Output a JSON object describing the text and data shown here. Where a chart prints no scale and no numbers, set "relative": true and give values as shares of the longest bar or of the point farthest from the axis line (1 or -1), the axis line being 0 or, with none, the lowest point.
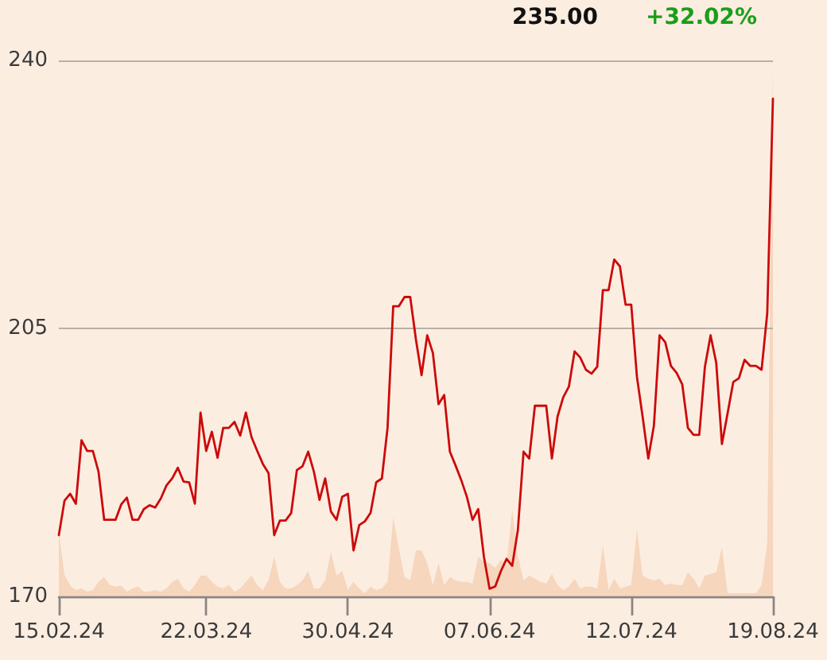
{
  "chart_data": [
    {
      "type": "line",
      "annotations": [
        "235.00",
        "+32.02%"
      ],
      "categories": [
        "15.02.24",
        null,
        null,
        null,
        null,
        null,
        null,
        null,
        null,
        null,
        null,
        null,
        null,
        null,
        null,
        null,
        null,
        null,
        null,
        null,
        null,
        null,
        null,
        null,
        null,
        null,
        "22.03.24",
        null,
        null,
        null,
        null,
        null,
        null,
        null,
        null,
        null,
        null,
        null,
        null,
        null,
        null,
        null,
        null,
        null,
        null,
        null,
        null,
        null,
        null,
        null,
        null,
        "30.04.24",
        null,
        null,
        null,
        null,
        null,
        null,
        null,
        null,
        null,
        null,
        null,
        null,
        null,
        null,
        null,
        null,
        null,
        null,
        null,
        null,
        null,
        null,
        null,
        null,
        "07.06.24",
        null,
        null,
        null,
        null,
        null,
        null,
        null,
        null,
        null,
        null,
        null,
        null,
        null,
        null,
        null,
        null,
        null,
        null,
        null,
        null,
        null,
        null,
        null,
        null,
        "12.07.24",
        null,
        null,
        null,
        null,
        null,
        null,
        null,
        null,
        null,
        null,
        null,
        null,
        null,
        null,
        null,
        null,
        null,
        null,
        null,
        null,
        null,
        null,
        null,
        null,
        "19.08.24"
      ],
      "series": [
        {
          "color": "#cc0a0a",
          "values": [
            178.0,
            182.5,
            183.4,
            182.1,
            190.4,
            189.0,
            189.0,
            186.3,
            180.0,
            180.0,
            180.0,
            182.0,
            182.9,
            180.0,
            180.0,
            181.4,
            181.9,
            181.6,
            182.8,
            184.5,
            185.4,
            186.8,
            185.0,
            184.9,
            182.1,
            194.0,
            189.0,
            191.5,
            188.1,
            192.0,
            192.0,
            192.8,
            191.0,
            194.0,
            190.8,
            189.0,
            187.3,
            186.1,
            178.0,
            179.9,
            179.9,
            180.9,
            186.5,
            187.0,
            188.9,
            186.3,
            182.6,
            185.4,
            181.1,
            180.0,
            183.0,
            183.4,
            176.0,
            179.3,
            179.8,
            180.9,
            184.9,
            185.4,
            192.0,
            207.9,
            207.9,
            209.1,
            209.1,
            203.6,
            198.9,
            204.1,
            201.8,
            195.1,
            196.3,
            188.9,
            187.1,
            185.2,
            183.0,
            180.0,
            181.4,
            175.2,
            171.0,
            171.3,
            173.3,
            174.9,
            174.0,
            178.7,
            188.9,
            188.0,
            194.9,
            194.9,
            194.9,
            188.0,
            193.5,
            196.0,
            197.4,
            202.0,
            201.2,
            199.6,
            199.1,
            200.0,
            210.0,
            210.0,
            214.0,
            213.1,
            208.1,
            208.1,
            198.7,
            193.5,
            188.0,
            192.3,
            204.1,
            203.2,
            200.1,
            199.2,
            197.7,
            192.0,
            191.1,
            191.1,
            200.0,
            204.1,
            200.5,
            189.9,
            193.9,
            198.0,
            198.5,
            200.9,
            200.1,
            200.1,
            199.6,
            207.0,
            235.0
          ]
        }
      ],
      "ylim": [
        170,
        240
      ],
      "yticks": [
        170,
        205,
        240
      ],
      "grid": "y",
      "marker": "none",
      "line_style": "solid"
    },
    {
      "type": "area",
      "relative": true,
      "tick_labels": false,
      "categories": [
        "15.02.24",
        null,
        null,
        null,
        null,
        null,
        null,
        null,
        null,
        null,
        null,
        null,
        null,
        null,
        null,
        null,
        null,
        null,
        null,
        null,
        null,
        null,
        null,
        null,
        null,
        null,
        "22.03.24",
        null,
        null,
        null,
        null,
        null,
        null,
        null,
        null,
        null,
        null,
        null,
        null,
        null,
        null,
        null,
        null,
        null,
        null,
        null,
        null,
        null,
        null,
        null,
        null,
        "30.04.24",
        null,
        null,
        null,
        null,
        null,
        null,
        null,
        null,
        null,
        null,
        null,
        null,
        null,
        null,
        null,
        null,
        null,
        null,
        null,
        null,
        null,
        null,
        null,
        null,
        "07.06.24",
        null,
        null,
        null,
        null,
        null,
        null,
        null,
        null,
        null,
        null,
        null,
        null,
        null,
        null,
        null,
        null,
        null,
        null,
        null,
        null,
        null,
        null,
        null,
        null,
        "12.07.24",
        null,
        null,
        null,
        null,
        null,
        null,
        null,
        null,
        null,
        null,
        null,
        null,
        null,
        null,
        null,
        null,
        null,
        null,
        null,
        null,
        null,
        null,
        null,
        null,
        "19.08.24"
      ],
      "series": [
        {
          "color": "#f6d6bd",
          "values": [
            0.12,
            0.04,
            0.02,
            0.012,
            0.015,
            0.009,
            0.012,
            0.027,
            0.036,
            0.021,
            0.018,
            0.02,
            0.009,
            0.015,
            0.018,
            0.009,
            0.009,
            0.012,
            0.009,
            0.015,
            0.027,
            0.033,
            0.015,
            0.009,
            0.021,
            0.039,
            0.039,
            0.027,
            0.018,
            0.015,
            0.021,
            0.009,
            0.015,
            0.027,
            0.039,
            0.021,
            0.012,
            0.03,
            0.074,
            0.027,
            0.015,
            0.015,
            0.021,
            0.03,
            0.047,
            0.015,
            0.015,
            0.03,
            0.083,
            0.039,
            0.047,
            0.012,
            0.027,
            0.015,
            0.006,
            0.018,
            0.012,
            0.015,
            0.027,
            0.148,
            0.089,
            0.036,
            0.03,
            0.086,
            0.086,
            0.062,
            0.021,
            0.062,
            0.021,
            0.036,
            0.03,
            0.027,
            0.027,
            0.024,
            0.074,
            0.065,
            0.062,
            0.053,
            0.068,
            0.059,
            0.163,
            0.074,
            0.03,
            0.039,
            0.033,
            0.027,
            0.024,
            0.042,
            0.021,
            0.012,
            0.018,
            0.033,
            0.015,
            0.018,
            0.018,
            0.015,
            0.095,
            0.012,
            0.033,
            0.015,
            0.018,
            0.021,
            0.125,
            0.039,
            0.033,
            0.03,
            0.033,
            0.021,
            0.024,
            0.021,
            0.021,
            0.045,
            0.033,
            0.015,
            0.039,
            0.042,
            0.045,
            0.092,
            0.006,
            0.006,
            0.006,
            0.006,
            0.006,
            0.006,
            0.021,
            0.1,
            1
          ]
        }
      ]
    }
  ]
}
